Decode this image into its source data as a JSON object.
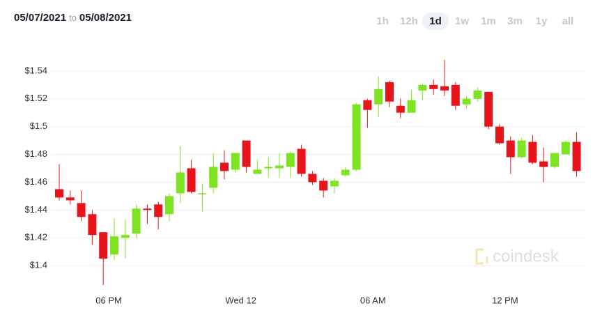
{
  "header": {
    "from": "05/07/2021",
    "joiner": "to",
    "to": "05/08/2021",
    "ranges": [
      "1h",
      "12h",
      "1d",
      "1w",
      "1m",
      "3m",
      "1y",
      "all"
    ],
    "selected": 2,
    "watermark": "coindesk"
  },
  "chart_data": {
    "type": "candlestick",
    "categories": [
      null,
      null,
      null,
      null,
      null,
      null,
      null,
      null,
      null,
      null,
      null,
      null,
      null,
      null,
      null,
      null,
      null,
      null,
      null,
      null,
      null,
      null,
      null,
      null,
      null,
      null,
      null,
      null,
      null,
      null,
      null,
      null,
      null,
      null,
      null,
      null,
      null,
      null,
      null,
      null,
      null,
      null,
      null,
      null,
      null,
      null,
      null,
      null
    ],
    "xticks": [
      {
        "value": 4.5,
        "label": "06 PM"
      },
      {
        "value": 16.5,
        "label": "Wed 12"
      },
      {
        "value": 28.5,
        "label": "06 AM"
      },
      {
        "value": 40.5,
        "label": "12 PM"
      }
    ],
    "open": [
      1.455,
      1.449,
      1.445,
      1.437,
      1.424,
      1.408,
      1.42,
      1.423,
      1.441,
      1.444,
      1.437,
      1.452,
      1.47,
      1.452,
      1.456,
      1.474,
      1.469,
      1.49,
      1.466,
      1.47,
      1.47,
      1.471,
      1.484,
      1.466,
      1.461,
      1.457,
      1.465,
      1.469,
      1.519,
      1.516,
      1.532,
      1.515,
      1.51,
      1.526,
      1.53,
      1.529,
      1.53,
      1.516,
      1.52,
      1.525,
      1.5,
      1.49,
      1.478,
      1.489,
      1.475,
      1.471,
      1.48,
      1.489
    ],
    "high": [
      1.473,
      1.454,
      1.454,
      1.44,
      1.424,
      1.434,
      1.433,
      1.444,
      1.444,
      1.446,
      1.452,
      1.486,
      1.476,
      1.459,
      1.481,
      1.483,
      1.481,
      1.49,
      1.476,
      1.478,
      1.481,
      1.482,
      1.487,
      1.468,
      1.463,
      1.463,
      1.471,
      1.517,
      1.52,
      1.536,
      1.533,
      1.52,
      1.526,
      1.531,
      1.534,
      1.548,
      1.532,
      1.522,
      1.528,
      1.525,
      1.502,
      1.493,
      1.492,
      1.494,
      1.485,
      1.481,
      1.49,
      1.496
    ],
    "low": [
      1.447,
      1.444,
      1.432,
      1.415,
      1.386,
      1.404,
      1.405,
      1.42,
      1.43,
      1.426,
      1.432,
      1.445,
      1.452,
      1.439,
      1.452,
      1.462,
      1.467,
      1.467,
      1.466,
      1.463,
      1.463,
      1.463,
      1.464,
      1.458,
      1.449,
      1.452,
      1.464,
      1.468,
      1.499,
      1.507,
      1.514,
      1.506,
      1.51,
      1.519,
      1.523,
      1.522,
      1.512,
      1.513,
      1.518,
      1.498,
      1.487,
      1.466,
      1.477,
      1.473,
      1.46,
      1.47,
      1.48,
      1.464
    ],
    "close": [
      1.449,
      1.447,
      1.435,
      1.422,
      1.405,
      1.421,
      1.422,
      1.441,
      1.44,
      1.435,
      1.45,
      1.467,
      1.453,
      1.452,
      1.471,
      1.468,
      1.481,
      1.471,
      1.469,
      1.471,
      1.472,
      1.481,
      1.466,
      1.46,
      1.454,
      1.461,
      1.469,
      1.516,
      1.512,
      1.527,
      1.518,
      1.51,
      1.519,
      1.53,
      1.527,
      1.526,
      1.515,
      1.52,
      1.526,
      1.5,
      1.488,
      1.478,
      1.49,
      1.474,
      1.471,
      1.481,
      1.489,
      1.468
    ],
    "up_color": "#7ee320",
    "down_color": "#e8141b",
    "ylim": [
      1.383,
      1.561
    ],
    "yticks": [
      {
        "value": 1.4,
        "label": "$1.4"
      },
      {
        "value": 1.42,
        "label": "$1.42"
      },
      {
        "value": 1.44,
        "label": "$1.44"
      },
      {
        "value": 1.46,
        "label": "$1.46"
      },
      {
        "value": 1.48,
        "label": "$1.48"
      },
      {
        "value": 1.5,
        "label": "$1.5"
      },
      {
        "value": 1.52,
        "label": "$1.52"
      },
      {
        "value": 1.54,
        "label": "$1.54"
      }
    ],
    "grid": true
  }
}
